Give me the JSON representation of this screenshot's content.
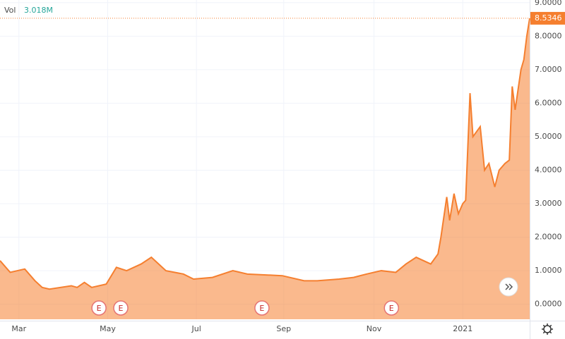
{
  "chart_data": {
    "type": "area",
    "volume_label": "Vol",
    "volume_value": "3.018M",
    "x": [
      0,
      7,
      17,
      24,
      29,
      34,
      49,
      53,
      58,
      63,
      73,
      80,
      87,
      97,
      104,
      114,
      126,
      133,
      146,
      160,
      170,
      194,
      209,
      218,
      233,
      243,
      252,
      262,
      272,
      279,
      286,
      296,
      301,
      303,
      307,
      309,
      312,
      315,
      318,
      320,
      323,
      325,
      330,
      333,
      336,
      340,
      343,
      347,
      350,
      352,
      354,
      358,
      360,
      362,
      364
    ],
    "series": [
      {
        "color": "#f57f2f",
        "values": [
          1.3,
          0.95,
          1.05,
          0.7,
          0.5,
          0.45,
          0.55,
          0.5,
          0.65,
          0.5,
          0.6,
          1.1,
          1.0,
          1.2,
          1.4,
          1.0,
          0.9,
          0.75,
          0.8,
          1.0,
          0.9,
          0.85,
          0.7,
          0.7,
          0.75,
          0.8,
          0.9,
          1.0,
          0.95,
          1.2,
          1.4,
          1.2,
          1.5,
          2.0,
          3.2,
          2.5,
          3.3,
          2.7,
          3.0,
          3.1,
          6.3,
          5.0,
          5.3,
          4.0,
          4.2,
          3.5,
          4.0,
          4.2,
          4.3,
          6.5,
          5.8,
          7.0,
          7.3,
          8.0,
          8.5346
        ]
      }
    ],
    "last_value": 8.5346,
    "xlim": [
      0,
      364
    ],
    "xticks": [
      {
        "value": 13,
        "label": "Mar"
      },
      {
        "value": 74,
        "label": "May"
      },
      {
        "value": 135,
        "label": "Jul"
      },
      {
        "value": 195,
        "label": "Sep"
      },
      {
        "value": 257,
        "label": "Nov"
      },
      {
        "value": 318,
        "label": "2021"
      }
    ],
    "ylim": [
      -0.45,
      9.08
    ],
    "yticks": [
      {
        "value": 0,
        "label": "0.0000"
      },
      {
        "value": 1,
        "label": "1.0000"
      },
      {
        "value": 2,
        "label": "2.0000"
      },
      {
        "value": 3,
        "label": "3.0000"
      },
      {
        "value": 4,
        "label": "4.0000"
      },
      {
        "value": 5,
        "label": "5.0000"
      },
      {
        "value": 6,
        "label": "6.0000"
      },
      {
        "value": 7,
        "label": "7.0000"
      },
      {
        "value": 8,
        "label": "8.0000"
      },
      {
        "value": 9,
        "label": "9.0000"
      }
    ],
    "grid": true,
    "events": [
      {
        "x": 68,
        "label": "E"
      },
      {
        "x": 83,
        "label": "E"
      },
      {
        "x": 180,
        "label": "E"
      },
      {
        "x": 269,
        "label": "E"
      }
    ]
  }
}
